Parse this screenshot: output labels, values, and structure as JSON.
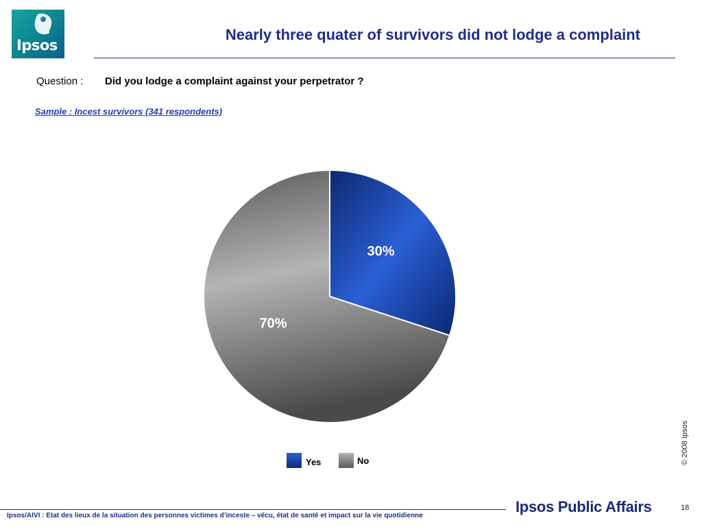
{
  "header": {
    "logo_text": "Ipsos",
    "title": "Nearly three quater of survivors did not lodge a complaint"
  },
  "question": {
    "label": "Question :",
    "text": "Did you lodge a complaint against your perpetrator ?"
  },
  "sample": "Sample : Incest survivors (341 respondents)",
  "chart_data": {
    "type": "pie",
    "categories": [
      "Yes",
      "No"
    ],
    "values": [
      30,
      70
    ],
    "value_labels": [
      "30%",
      "70%"
    ],
    "colors": [
      "#1e4fc2",
      "#8a8a8a"
    ],
    "legend_position": "bottom"
  },
  "side_note": "© 2008 Ipsos",
  "footer": {
    "text": "Ipsos/AIVI : Etat des lieux de la situation des personnes victimes d’inceste – vécu, état de santé et impact sur la vie quotidienne",
    "brand": "Ipsos Public Affairs",
    "page_number": "18"
  }
}
